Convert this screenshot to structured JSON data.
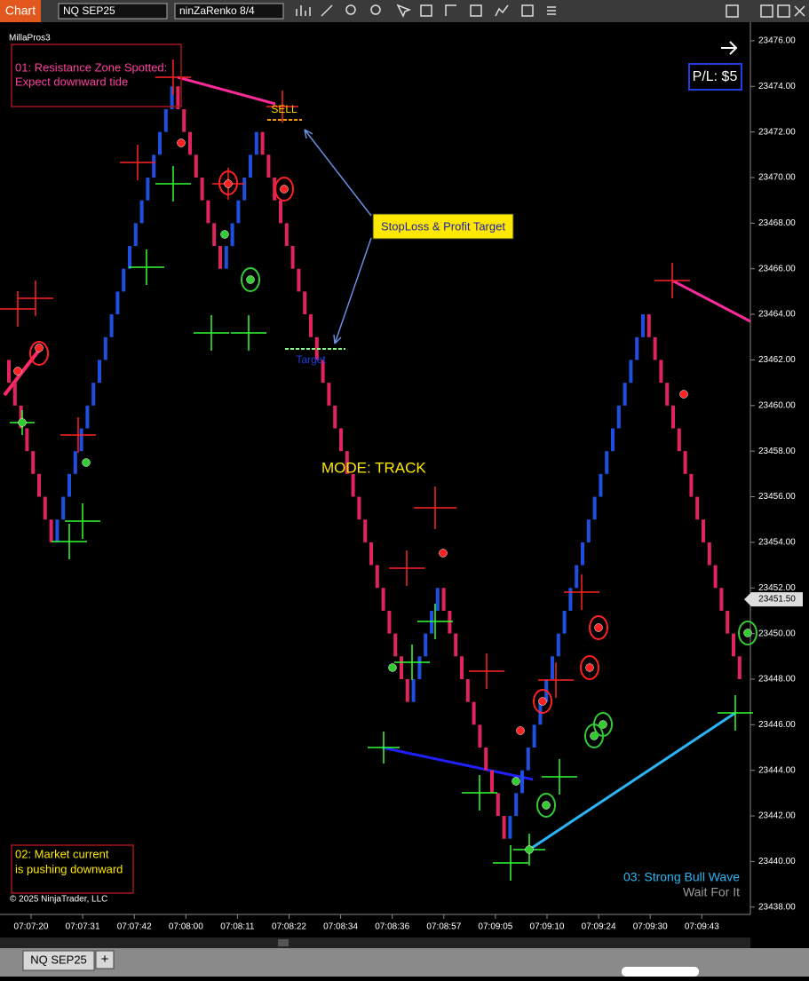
{
  "toolbar": {
    "app_tab": "Chart",
    "instrument": "NQ SEP25",
    "bar_type": "ninZaRenko 8/4"
  },
  "indicator_label": "MillaPros3",
  "chart_data": {
    "type": "renko",
    "open": 23462,
    "closes": [
      23461,
      23460,
      23459,
      23458,
      23457,
      23456,
      23455,
      23454,
      23455,
      23456,
      23457,
      23458,
      23459,
      23460,
      23461,
      23462,
      23463,
      23464,
      23465,
      23466,
      23467,
      23468,
      23469,
      23470,
      23471,
      23472,
      23473,
      23474,
      23473,
      23472,
      23471,
      23470,
      23469,
      23468,
      23467,
      23466,
      23467,
      23468,
      23469,
      23470,
      23471,
      23472,
      23471,
      23470,
      23469,
      23468,
      23467,
      23466,
      23465,
      23464,
      23463,
      23462,
      23461,
      23460,
      23459,
      23458,
      23457,
      23456,
      23455,
      23454,
      23453,
      23452,
      23451,
      23450,
      23449,
      23448,
      23447,
      23448,
      23449,
      23450,
      23451,
      23452,
      23451,
      23450,
      23449,
      23448,
      23447,
      23446,
      23445,
      23444,
      23443,
      23442,
      23441,
      23442,
      23443,
      23444,
      23445,
      23446,
      23447,
      23448,
      23449,
      23450,
      23451,
      23452,
      23453,
      23454,
      23455,
      23456,
      23457,
      23458,
      23459,
      23460,
      23461,
      23462,
      23463,
      23464,
      23463,
      23462,
      23461,
      23460,
      23459,
      23458,
      23457,
      23456,
      23455,
      23454,
      23453,
      23452,
      23451,
      23450,
      23449,
      23448
    ],
    "up_color": "#1f4fe0",
    "down_color": "#e0245e",
    "ylim": [
      23437.68,
      23476.62
    ],
    "yticks": [
      {
        "value": 23438,
        "label": "23438.00"
      },
      {
        "value": 23440,
        "label": "23440.00"
      },
      {
        "value": 23442,
        "label": "23442.00"
      },
      {
        "value": 23444,
        "label": "23444.00"
      },
      {
        "value": 23446,
        "label": "23446.00"
      },
      {
        "value": 23448,
        "label": "23448.00"
      },
      {
        "value": 23450,
        "label": "23450.00"
      },
      {
        "value": 23452,
        "label": "23452.00"
      },
      {
        "value": 23454,
        "label": "23454.00"
      },
      {
        "value": 23456,
        "label": "23456.00"
      },
      {
        "value": 23458,
        "label": "23458.00"
      },
      {
        "value": 23460,
        "label": "23460.00"
      },
      {
        "value": 23462,
        "label": "23462.00"
      },
      {
        "value": 23464,
        "label": "23464.00"
      },
      {
        "value": 23466,
        "label": "23466.00"
      },
      {
        "value": 23468,
        "label": "23468.00"
      },
      {
        "value": 23470,
        "label": "23470.00"
      },
      {
        "value": 23472,
        "label": "23472.00"
      },
      {
        "value": 23474,
        "label": "23474.00"
      },
      {
        "value": 23476,
        "label": "23476.00"
      }
    ],
    "x_labels": [
      "07:07:20",
      "07:07:31",
      "07:07:42",
      "07:08:00",
      "07:08:11",
      "07:08:22",
      "07:08:34",
      "07:08:36",
      "07:08:57",
      "07:09:05",
      "07:09:10",
      "07:09:24",
      "07:09:30",
      "07:09:43"
    ],
    "last_price": {
      "value": 23451.5,
      "label": "23451.50"
    }
  },
  "annotations": {
    "resistance_line1": "01: Resistance Zone Spotted:",
    "resistance_line2": "Expect downward tide",
    "sell": "SELL",
    "stoploss": "StopLoss & Profit Target",
    "target": "Target",
    "mode": "MODE: TRACK",
    "market_line1": "02: Market current",
    "market_line2": "is pushing downward",
    "bull_line1": "03: Strong Bull Wave",
    "bull_line2": "Wait For It"
  },
  "pl": "P/L: $5",
  "copyright": "© 2025 NinjaTrader, LLC",
  "tab": {
    "name": "NQ SEP25",
    "add": "+"
  }
}
